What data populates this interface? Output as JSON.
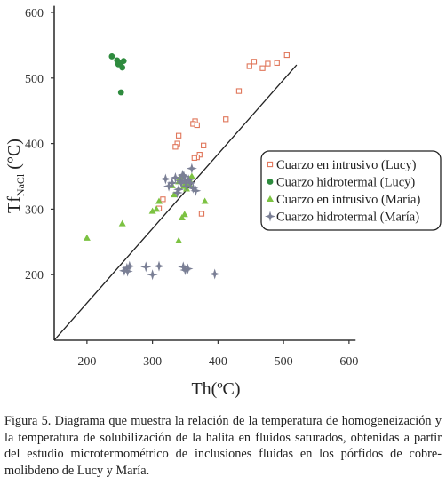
{
  "chart_data": {
    "type": "scatter",
    "x_axis": {
      "label_main": "Th(",
      "label_unit": "ºC)",
      "ticks": [
        "200",
        "300",
        "400",
        "500",
        "600"
      ],
      "range": [
        150,
        610
      ]
    },
    "y_axis": {
      "label_main": "Tf",
      "label_sub": "NaCl",
      "label_unit": " (°C)",
      "ticks": [
        "200",
        "300",
        "400",
        "500",
        "600"
      ],
      "range": [
        100,
        610
      ]
    },
    "diagonal_line": {
      "from": [
        150,
        100
      ],
      "to": [
        520,
        520
      ]
    },
    "legend": {
      "position": "right"
    },
    "series": [
      {
        "name": "Cuarzo en intrusivo (Lucy)",
        "marker": "open-square",
        "color": "#e0765a",
        "points": [
          [
            505,
            535
          ],
          [
            490,
            523
          ],
          [
            476,
            522
          ],
          [
            468,
            515
          ],
          [
            455,
            525
          ],
          [
            448,
            518
          ],
          [
            432,
            480
          ],
          [
            412,
            437
          ],
          [
            365,
            434
          ],
          [
            362,
            430
          ],
          [
            368,
            428
          ],
          [
            378,
            397
          ],
          [
            340,
            412
          ],
          [
            338,
            400
          ],
          [
            335,
            395
          ],
          [
            372,
            383
          ],
          [
            368,
            379
          ],
          [
            364,
            378
          ],
          [
            375,
            293
          ],
          [
            316,
            315
          ],
          [
            310,
            301
          ]
        ]
      },
      {
        "name": "Cuarzo hidrotermal (Lucy)",
        "marker": "filled-circle",
        "color": "#2e8b3e",
        "points": [
          [
            238,
            533
          ],
          [
            246,
            527
          ],
          [
            248,
            521
          ],
          [
            252,
            523
          ],
          [
            256,
            526
          ],
          [
            254,
            516
          ],
          [
            252,
            478
          ]
        ]
      },
      {
        "name": "Cuarzo en intrusivo (María)",
        "marker": "filled-triangle",
        "color": "#7cc242",
        "points": [
          [
            200,
            256
          ],
          [
            254,
            278
          ],
          [
            300,
            297
          ],
          [
            306,
            300
          ],
          [
            310,
            312
          ],
          [
            333,
            322
          ],
          [
            330,
            336
          ],
          [
            340,
            342
          ],
          [
            350,
            339
          ],
          [
            356,
            346
          ],
          [
            360,
            350
          ],
          [
            352,
            331
          ],
          [
            356,
            338
          ],
          [
            348,
            335
          ],
          [
            342,
            348
          ],
          [
            380,
            312
          ],
          [
            349,
            292
          ],
          [
            345,
            287
          ],
          [
            340,
            252
          ]
        ]
      },
      {
        "name": "Cuarzo hidrotermal (María)",
        "marker": "plus-star",
        "color": "#7a7f95",
        "points": [
          [
            320,
            346
          ],
          [
            325,
            335
          ],
          [
            330,
            340
          ],
          [
            335,
            348
          ],
          [
            340,
            330
          ],
          [
            343,
            343
          ],
          [
            346,
            352
          ],
          [
            350,
            343
          ],
          [
            352,
            335
          ],
          [
            355,
            345
          ],
          [
            358,
            340
          ],
          [
            360,
            362
          ],
          [
            362,
            332
          ],
          [
            366,
            328
          ],
          [
            338,
            325
          ],
          [
            344,
            340
          ],
          [
            348,
            350
          ],
          [
            257,
            206
          ],
          [
            261,
            210
          ],
          [
            265,
            213
          ],
          [
            262,
            205
          ],
          [
            290,
            212
          ],
          [
            300,
            200
          ],
          [
            310,
            213
          ],
          [
            347,
            212
          ],
          [
            350,
            207
          ],
          [
            354,
            209
          ],
          [
            395,
            201
          ]
        ]
      }
    ]
  },
  "caption": "Figura 5. Diagrama que muestra la relación de la temperatura de homogeneización y la temperatura de solubilización de la halita en fluidos saturados, obtenidas a partir del estudio microtermométrico de inclusiones fluidas en los pórfidos de cobre-molibdeno de Lucy y María."
}
